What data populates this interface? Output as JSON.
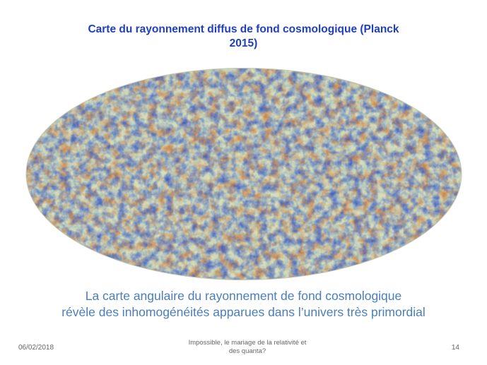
{
  "slide": {
    "title_line1": "Carte du rayonnement diffus de fond cosmologique (Planck",
    "title_line2": "2015)",
    "caption_line1": "La carte angulaire du rayonnement de fond cosmologique",
    "caption_line2": "révèle des inhomogénéités apparues dans  l’univers très primordial",
    "map_colors": {
      "base": "#d8dcb8",
      "hot": "#d2732a",
      "cold": "#2a52c8",
      "mid": "#8fb8c8"
    }
  },
  "footer": {
    "date": "06/02/2018",
    "center_line1": "Impossible, le mariage de la relativité et",
    "center_line2": "des quanta?",
    "page_number": "14"
  }
}
